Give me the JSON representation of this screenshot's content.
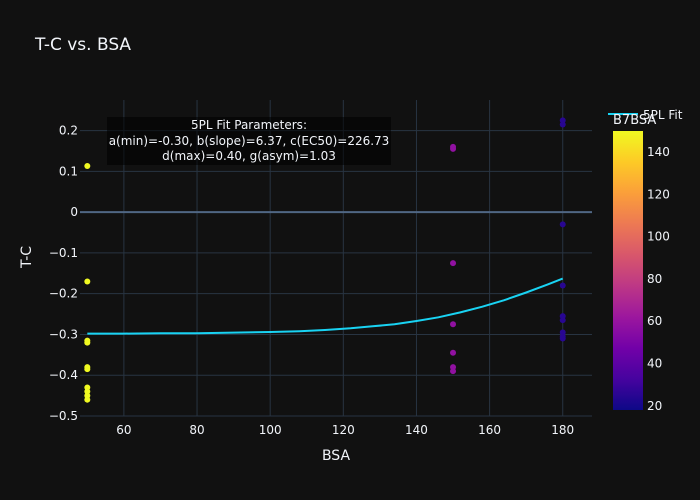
{
  "chart_data": {
    "type": "scatter",
    "title": "T-C vs. BSA",
    "xlabel": "BSA",
    "ylabel": "T-C",
    "xlim": [
      48,
      188
    ],
    "ylim": [
      -0.5,
      0.275
    ],
    "x_ticks": [
      60,
      80,
      100,
      120,
      140,
      160,
      180
    ],
    "y_ticks": [
      -0.5,
      -0.4,
      -0.3,
      -0.2,
      -0.1,
      0,
      0.1,
      0.2
    ],
    "grid": true,
    "colorbar": {
      "title": "B7BSA",
      "min": 18,
      "max": 150,
      "ticks": [
        20,
        40,
        60,
        80,
        100,
        120,
        140
      ],
      "colorscale": [
        "#0d0887",
        "#46039f",
        "#7201a8",
        "#9c179e",
        "#bd3786",
        "#d8576b",
        "#ed7953",
        "#fb9f3a",
        "#fdca26",
        "#f0f921"
      ]
    },
    "annotation": [
      "5PL Fit Parameters:",
      "a(min)=-0.30, b(slope)=6.37, c(EC50)=226.73",
      "d(max)=0.40, g(asym)=1.03"
    ],
    "fit_series": {
      "name": "5PL Fit",
      "color": "#19d3f3",
      "x": [
        50,
        60,
        70,
        80,
        88,
        100,
        108,
        115,
        122,
        128,
        134,
        140,
        146,
        152,
        158,
        164,
        170,
        176,
        180
      ],
      "y": [
        -0.298,
        -0.298,
        -0.297,
        -0.297,
        -0.296,
        -0.294,
        -0.292,
        -0.289,
        -0.285,
        -0.28,
        -0.275,
        -0.267,
        -0.258,
        -0.246,
        -0.232,
        -0.216,
        -0.197,
        -0.177,
        -0.163
      ]
    },
    "points": [
      {
        "x": 50,
        "y": 0.113,
        "c": 150
      },
      {
        "x": 50,
        "y": -0.17,
        "c": 150
      },
      {
        "x": 50,
        "y": -0.315,
        "c": 150
      },
      {
        "x": 50,
        "y": -0.32,
        "c": 150
      },
      {
        "x": 50,
        "y": -0.38,
        "c": 150
      },
      {
        "x": 50,
        "y": -0.385,
        "c": 150
      },
      {
        "x": 50,
        "y": -0.43,
        "c": 150
      },
      {
        "x": 50,
        "y": -0.44,
        "c": 150
      },
      {
        "x": 50,
        "y": -0.45,
        "c": 150
      },
      {
        "x": 50,
        "y": -0.46,
        "c": 150
      },
      {
        "x": 150,
        "y": 0.16,
        "c": 58
      },
      {
        "x": 150,
        "y": 0.155,
        "c": 58
      },
      {
        "x": 150,
        "y": -0.125,
        "c": 58
      },
      {
        "x": 150,
        "y": -0.275,
        "c": 58
      },
      {
        "x": 150,
        "y": -0.345,
        "c": 58
      },
      {
        "x": 150,
        "y": -0.38,
        "c": 58
      },
      {
        "x": 150,
        "y": -0.39,
        "c": 58
      },
      {
        "x": 180,
        "y": 0.225,
        "c": 25
      },
      {
        "x": 180,
        "y": 0.215,
        "c": 25
      },
      {
        "x": 180,
        "y": -0.03,
        "c": 25
      },
      {
        "x": 180,
        "y": -0.18,
        "c": 25
      },
      {
        "x": 180,
        "y": -0.255,
        "c": 25
      },
      {
        "x": 180,
        "y": -0.265,
        "c": 25
      },
      {
        "x": 180,
        "y": -0.295,
        "c": 25
      },
      {
        "x": 180,
        "y": -0.305,
        "c": 25
      },
      {
        "x": 180,
        "y": -0.31,
        "c": 25
      }
    ]
  }
}
